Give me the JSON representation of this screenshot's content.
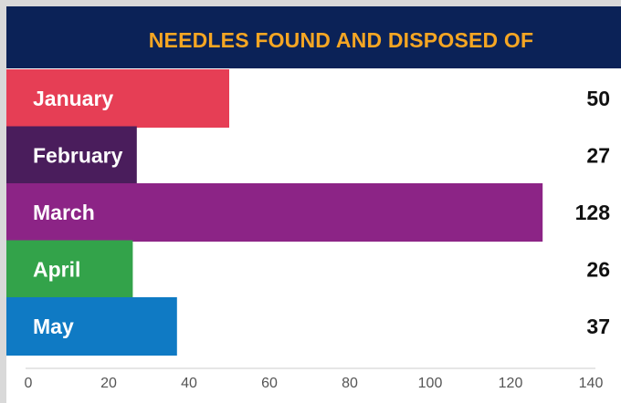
{
  "chart_data": {
    "type": "bar",
    "orientation": "horizontal",
    "title": "NEEDLES FOUND AND DISPOSED OF",
    "categories": [
      "January",
      "February",
      "March",
      "April",
      "May"
    ],
    "values": [
      50,
      27,
      128,
      26,
      37
    ],
    "colors": [
      "#e63e55",
      "#4a1d5c",
      "#8c2486",
      "#33a34a",
      "#0f7ac4"
    ],
    "xlim": [
      0,
      140
    ],
    "xticks": [
      "0",
      "20",
      "40",
      "60",
      "80",
      "100",
      "120",
      "140"
    ],
    "xlabel": "",
    "ylabel": "",
    "grid": false,
    "legend": "none"
  },
  "theme": {
    "header_bg": "#0b2257",
    "title_color": "#f5a623",
    "page_bg": "#d9d9d9"
  }
}
